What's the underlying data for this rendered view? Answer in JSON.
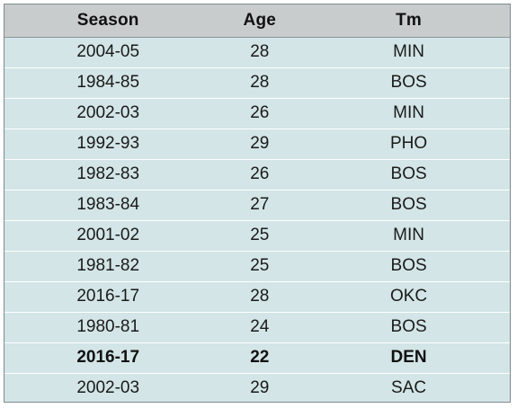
{
  "table": {
    "headers": {
      "season": "Season",
      "age": "Age",
      "team": "Tm"
    },
    "rows": [
      {
        "season": "2004-05",
        "age": "28",
        "team": "MIN",
        "bold": false
      },
      {
        "season": "1984-85",
        "age": "28",
        "team": "BOS",
        "bold": false
      },
      {
        "season": "2002-03",
        "age": "26",
        "team": "MIN",
        "bold": false
      },
      {
        "season": "1992-93",
        "age": "29",
        "team": "PHO",
        "bold": false
      },
      {
        "season": "1982-83",
        "age": "26",
        "team": "BOS",
        "bold": false
      },
      {
        "season": "1983-84",
        "age": "27",
        "team": "BOS",
        "bold": false
      },
      {
        "season": "2001-02",
        "age": "25",
        "team": "MIN",
        "bold": false
      },
      {
        "season": "1981-82",
        "age": "25",
        "team": "BOS",
        "bold": false
      },
      {
        "season": "2016-17",
        "age": "28",
        "team": "OKC",
        "bold": false
      },
      {
        "season": "1980-81",
        "age": "24",
        "team": "BOS",
        "bold": false
      },
      {
        "season": "2016-17",
        "age": "22",
        "team": "DEN",
        "bold": true
      },
      {
        "season": "2002-03",
        "age": "29",
        "team": "SAC",
        "bold": false
      }
    ]
  },
  "colors": {
    "header_bg": "#c9cccd",
    "body_bg": "#d3e5e6",
    "row_divider": "#ffffff"
  }
}
